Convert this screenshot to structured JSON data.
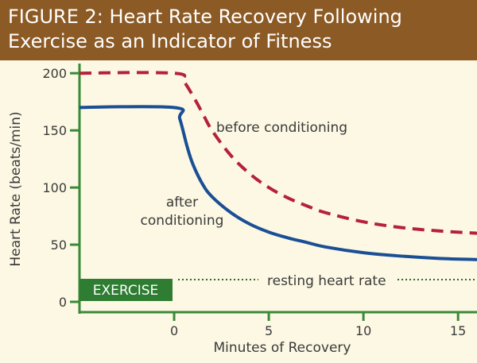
{
  "header": {
    "title": "FIGURE 2: Heart Rate Recovery Following Exercise as an Indicator of Fitness"
  },
  "colors": {
    "banner": "#8c5a24",
    "background": "#fcf8e3",
    "axis": "#3a8a3a",
    "before_series": "#b5213a",
    "after_series": "#1a4f96",
    "exercise_box": "#2f7d32",
    "resting_line": "#2f6b2f"
  },
  "chart_data": {
    "type": "line",
    "title": "FIGURE 2: Heart Rate Recovery Following Exercise as an Indicator of Fitness",
    "xlabel": "Minutes of Recovery",
    "ylabel": "Heart Rate (beats/min)",
    "xlim": [
      -5,
      16
    ],
    "ylim": [
      0,
      205
    ],
    "x_ticks": [
      0,
      5,
      10,
      15
    ],
    "y_ticks": [
      0,
      50,
      100,
      150,
      200
    ],
    "series": [
      {
        "name": "before conditioning",
        "style": "dashed",
        "x": [
          -5,
          0,
          0.5,
          1,
          1.5,
          2,
          3,
          4,
          5,
          6,
          7,
          8,
          10,
          12,
          14,
          16
        ],
        "values": [
          200,
          200,
          193,
          180,
          165,
          150,
          128,
          112,
          100,
          91,
          84,
          78,
          70,
          65,
          62,
          60
        ]
      },
      {
        "name": "after conditioning",
        "style": "solid",
        "x": [
          -5,
          0,
          0.3,
          0.7,
          1,
          1.5,
          2,
          3,
          4,
          5,
          6,
          7,
          8,
          10,
          12,
          14,
          16
        ],
        "values": [
          170,
          170,
          160,
          135,
          120,
          103,
          92,
          78,
          68,
          61,
          56,
          52,
          48,
          43,
          40,
          38,
          37
        ]
      }
    ],
    "annotations": {
      "before_label": "before conditioning",
      "after_label_line1": "after",
      "after_label_line2": "conditioning",
      "resting_label": "resting heart rate",
      "resting_value": 20,
      "exercise_label": "EXERCISE",
      "exercise_range": [
        -5,
        0
      ]
    }
  }
}
